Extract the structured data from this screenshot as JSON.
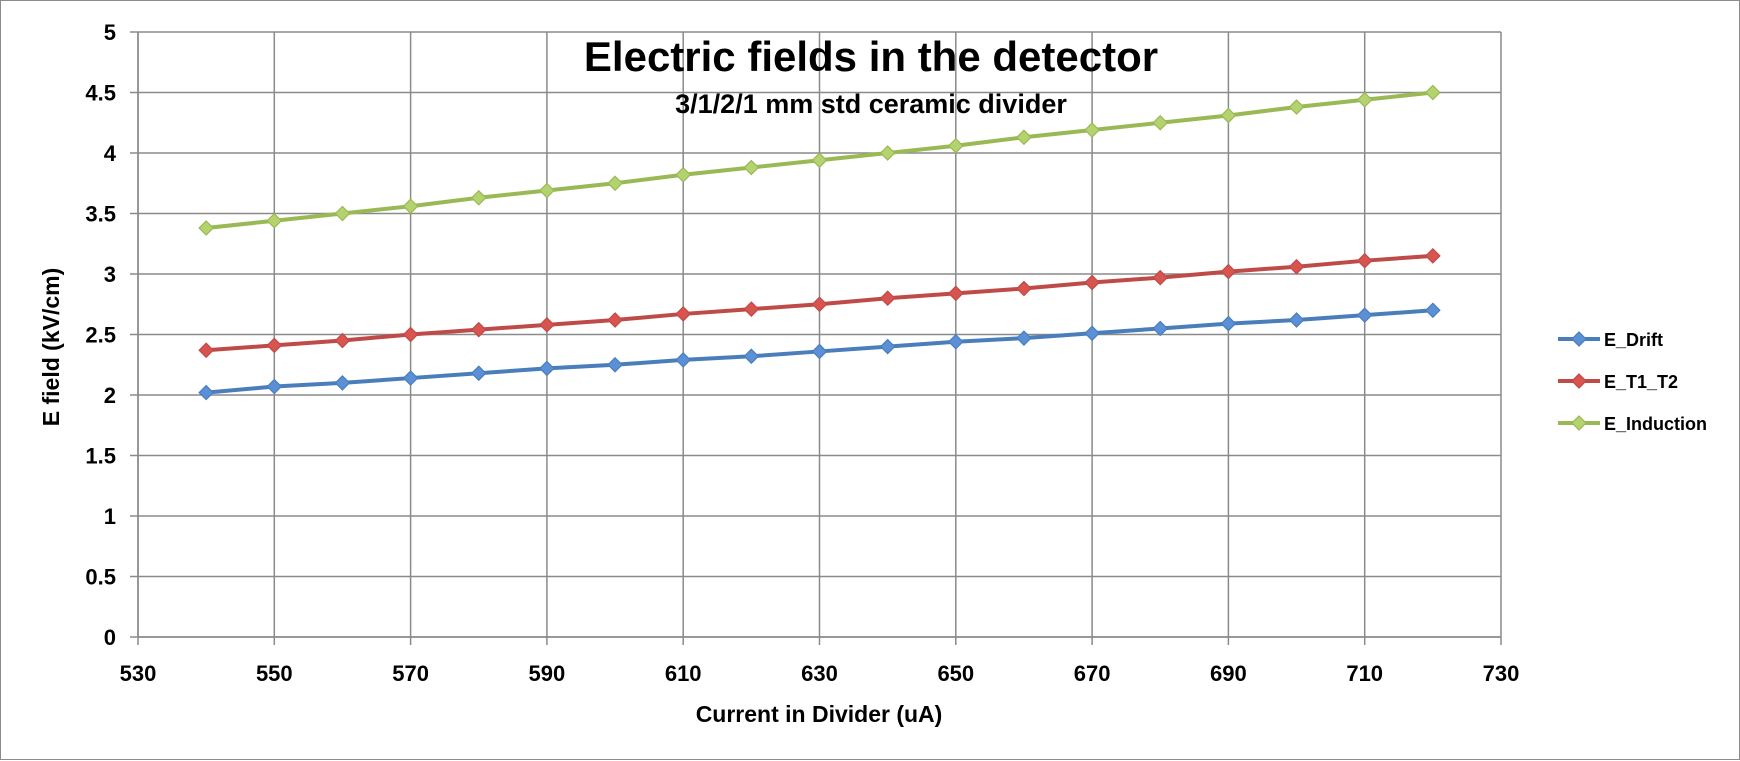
{
  "chart_data": {
    "type": "line",
    "title": "Electric fields in the detector",
    "subtitle": "3/1/2/1 mm std ceramic divider",
    "xlabel": "Current in Divider (uA)",
    "ylabel": "E field (kV/cm)",
    "xlim": [
      530,
      730
    ],
    "ylim": [
      0,
      5
    ],
    "x_ticks": [
      "530",
      "550",
      "570",
      "590",
      "610",
      "630",
      "650",
      "670",
      "690",
      "710",
      "730"
    ],
    "y_ticks": [
      "0",
      "0.5",
      "1",
      "1.5",
      "2",
      "2.5",
      "3",
      "3.5",
      "4",
      "4.5",
      "5"
    ],
    "grid": true,
    "legend_position": "right",
    "x": [
      540,
      550,
      560,
      570,
      580,
      590,
      600,
      610,
      620,
      630,
      640,
      650,
      660,
      670,
      680,
      690,
      700,
      710,
      720
    ],
    "series": [
      {
        "name": "E_Drift",
        "color": "#4a7ebb",
        "marker_fill": "#5b8fd6",
        "values": [
          2.02,
          2.07,
          2.1,
          2.14,
          2.18,
          2.22,
          2.25,
          2.29,
          2.32,
          2.36,
          2.4,
          2.44,
          2.47,
          2.51,
          2.55,
          2.59,
          2.62,
          2.66,
          2.7
        ]
      },
      {
        "name": "E_T1_T2",
        "color": "#be4b48",
        "marker_fill": "#d9534f",
        "values": [
          2.37,
          2.41,
          2.45,
          2.5,
          2.54,
          2.58,
          2.62,
          2.67,
          2.71,
          2.75,
          2.8,
          2.84,
          2.88,
          2.93,
          2.97,
          3.02,
          3.06,
          3.11,
          3.15
        ]
      },
      {
        "name": "E_Induction",
        "color": "#98b954",
        "marker_fill": "#b4d36e",
        "values": [
          3.38,
          3.44,
          3.5,
          3.56,
          3.63,
          3.69,
          3.75,
          3.82,
          3.88,
          3.94,
          4.0,
          4.06,
          4.13,
          4.19,
          4.25,
          4.31,
          4.38,
          4.44,
          4.5
        ]
      }
    ]
  }
}
